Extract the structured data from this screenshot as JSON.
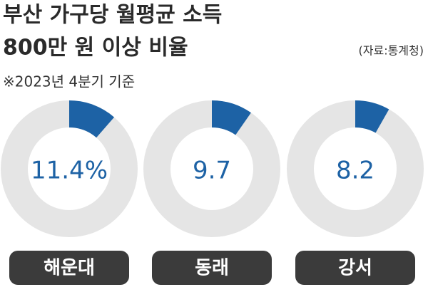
{
  "chart_data": {
    "type": "donut",
    "title": [
      "부산 가구당 월평균 소득",
      "800만 원 이상 비율"
    ],
    "subtitle": "※2023년 4분기 기준",
    "source": "(자료:통계청)",
    "categories": [
      "해운대",
      "동래",
      "강서"
    ],
    "values": [
      11.4,
      9.7,
      8.2
    ],
    "value_labels": [
      "11.4%",
      "9.7",
      "8.2"
    ],
    "color": "#1d62a5",
    "rest_color": "#e5e5e5"
  }
}
